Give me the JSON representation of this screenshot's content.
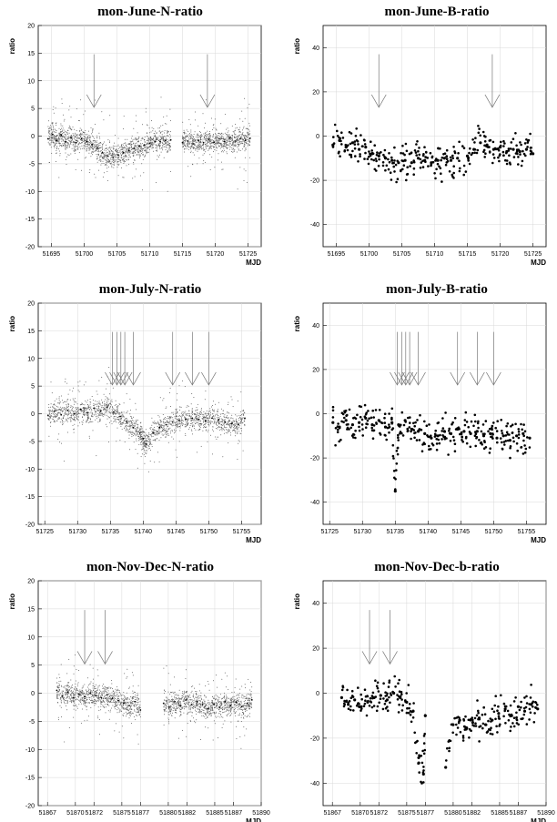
{
  "chart_data": [
    {
      "type": "scatter",
      "title": "mon-June-N-ratio",
      "xlabel": "MJD",
      "ylabel": "ratio",
      "xlim": [
        51693,
        51727
      ],
      "ylim": [
        -20,
        20
      ],
      "xticks": [
        51695,
        51700,
        51705,
        51710,
        51715,
        51720,
        51725
      ],
      "yticks": [
        -20,
        -15,
        -10,
        -5,
        0,
        5,
        10,
        15,
        20
      ],
      "grid": true,
      "marker": "small",
      "series": [
        {
          "x": [
            51694.5,
            51695.2,
            51695.8,
            51696.5,
            51697.2,
            51698.0,
            51698.8,
            51699.6,
            51700.4,
            51701.2,
            51702.0,
            51702.8,
            51703.6,
            51704.4,
            51705.2,
            51706.0,
            51706.8,
            51707.6,
            51708.4,
            51709.2,
            51710.0,
            51710.8,
            51711.6,
            51712.4,
            51713.2,
            51715.0,
            51715.8,
            51716.6,
            51717.4,
            51718.2,
            51719.0,
            51719.8,
            51720.6,
            51721.4,
            51722.2,
            51723.0,
            51723.8,
            51724.6,
            51725.3
          ],
          "y": [
            -0.5,
            0.3,
            -0.8,
            0.2,
            -1.0,
            -0.3,
            -1.2,
            -0.5,
            -1.0,
            -1.5,
            -2.2,
            -3.0,
            -3.6,
            -3.8,
            -3.4,
            -3.0,
            -2.6,
            -2.2,
            -1.8,
            -1.6,
            -1.3,
            -1.0,
            -1.0,
            -0.8,
            -0.7,
            -1.2,
            -0.9,
            -1.4,
            -0.8,
            -1.2,
            -0.6,
            -1.1,
            -0.5,
            -1.0,
            -0.4,
            -0.9,
            -0.5,
            -0.8,
            -0.4
          ]
        }
      ],
      "annotations": [
        {
          "type": "arrow",
          "x": 51701.5
        },
        {
          "type": "arrow",
          "x": 51718.8
        }
      ]
    },
    {
      "type": "scatter",
      "title": "mon-June-B-ratio",
      "xlabel": "MJD",
      "ylabel": "ratio",
      "xlim": [
        51693,
        51727
      ],
      "ylim": [
        -50,
        50
      ],
      "xticks": [
        51695,
        51700,
        51705,
        51710,
        51715,
        51720,
        51725
      ],
      "yticks": [
        -40,
        -20,
        0,
        20,
        40
      ],
      "grid": true,
      "marker": "dot",
      "series": [
        {
          "x": [
            51694.5,
            51695.5,
            51696.5,
            51697.5,
            51698.5,
            51699.5,
            51700.5,
            51701.5,
            51702.5,
            51703.5,
            51704.5,
            51705.5,
            51706.5,
            51707.5,
            51708.5,
            51709.5,
            51710.5,
            51711.5,
            51712.5,
            51713.5,
            51715.0,
            51716.0,
            51717.0,
            51718.0,
            51719.0,
            51720.0,
            51721.0,
            51722.0,
            51723.0,
            51724.0,
            51725.0
          ],
          "y": [
            -4,
            -2,
            -5,
            -3,
            -6,
            -5,
            -8,
            -9,
            -10,
            -11,
            -12,
            -11,
            -12,
            -10,
            -11,
            -12,
            -11,
            -10,
            -11,
            -10,
            -9,
            -6,
            -3,
            -4,
            -6,
            -5,
            -7,
            -6,
            -7,
            -6,
            -8
          ]
        }
      ],
      "annotations": [
        {
          "type": "arrow",
          "x": 51701.5
        },
        {
          "type": "arrow",
          "x": 51718.8
        }
      ]
    },
    {
      "type": "scatter",
      "title": "mon-July-N-ratio",
      "xlabel": "MJD",
      "ylabel": "ratio",
      "xlim": [
        51724,
        51758
      ],
      "ylim": [
        -20,
        20
      ],
      "xticks": [
        51725,
        51730,
        51735,
        51740,
        51745,
        51750,
        51755
      ],
      "yticks": [
        -20,
        -15,
        -10,
        -5,
        0,
        5,
        10,
        15,
        20
      ],
      "grid": true,
      "marker": "small",
      "series": [
        {
          "x": [
            51725.5,
            51726.5,
            51727.5,
            51728.5,
            51729.5,
            51730.5,
            51731.5,
            51732.5,
            51733.5,
            51734.5,
            51735.5,
            51736.5,
            51737.5,
            51738.5,
            51739.5,
            51740.0,
            51740.5,
            51741.5,
            51742.5,
            51743.5,
            51744.5,
            51745.5,
            51746.5,
            51747.5,
            51748.5,
            51749.5,
            51750.5,
            51751.5,
            51752.5,
            51753.5,
            51754.5,
            51755.5
          ],
          "y": [
            -0.3,
            0.5,
            -0.2,
            0.6,
            0.0,
            0.8,
            0.2,
            1.0,
            0.5,
            1.2,
            0.3,
            -0.5,
            -1.5,
            -2.5,
            -3.5,
            -4.5,
            -5.5,
            -3.5,
            -2.5,
            -2.0,
            -1.5,
            -1.2,
            -1.0,
            -0.8,
            -1.0,
            -1.3,
            -0.8,
            -1.1,
            -1.5,
            -1.8,
            -2.0,
            -0.8
          ]
        }
      ],
      "annotations": [
        {
          "type": "arrow",
          "x": 51735.3
        },
        {
          "type": "arrow",
          "x": 51736.0
        },
        {
          "type": "arrow",
          "x": 51736.6
        },
        {
          "type": "arrow",
          "x": 51737.2
        },
        {
          "type": "arrow",
          "x": 51738.5
        },
        {
          "type": "arrow",
          "x": 51744.5
        },
        {
          "type": "arrow",
          "x": 51747.5
        },
        {
          "type": "arrow",
          "x": 51750.0
        }
      ]
    },
    {
      "type": "scatter",
      "title": "mon-July-B-ratio",
      "xlabel": "MJD",
      "ylabel": "ratio",
      "xlim": [
        51724,
        51758
      ],
      "ylim": [
        -50,
        50
      ],
      "xticks": [
        51725,
        51730,
        51735,
        51740,
        51745,
        51750,
        51755
      ],
      "yticks": [
        -40,
        -20,
        0,
        20,
        40
      ],
      "grid": true,
      "marker": "dot",
      "series": [
        {
          "x": [
            51725.5,
            51726.5,
            51727.5,
            51728.5,
            51729.5,
            51730.5,
            51731.5,
            51732.5,
            51733.5,
            51734.5,
            51735.0,
            51735.5,
            51736.5,
            51737.5,
            51738.5,
            51739.5,
            51740.5,
            51741.5,
            51742.5,
            51743.5,
            51744.5,
            51745.5,
            51746.5,
            51747.5,
            51748.5,
            51749.5,
            51750.5,
            51751.5,
            51752.5,
            51753.5,
            51754.5,
            51755.5
          ],
          "y": [
            -4,
            -6,
            -3,
            -5,
            -4,
            -2,
            -5,
            -3,
            -6,
            -4,
            -35,
            -5,
            -3,
            -7,
            -8,
            -9,
            -11,
            -10,
            -8,
            -9,
            -7,
            -8,
            -9,
            -8,
            -10,
            -9,
            -11,
            -10,
            -12,
            -10,
            -9,
            -11
          ]
        }
      ],
      "annotations": [
        {
          "type": "arrow",
          "x": 51735.3
        },
        {
          "type": "arrow",
          "x": 51736.0
        },
        {
          "type": "arrow",
          "x": 51736.6
        },
        {
          "type": "arrow",
          "x": 51737.2
        },
        {
          "type": "arrow",
          "x": 51738.5
        },
        {
          "type": "arrow",
          "x": 51744.5
        },
        {
          "type": "arrow",
          "x": 51747.5
        },
        {
          "type": "arrow",
          "x": 51750.0
        }
      ]
    },
    {
      "type": "scatter",
      "title": "mon-Nov-Dec-N-ratio",
      "xlabel": "MJD",
      "ylabel": "ratio",
      "xlim": [
        51866,
        51890
      ],
      "ylim": [
        -20,
        20
      ],
      "xticks": [
        51867,
        51870,
        51872,
        51875,
        51877,
        51880,
        51882,
        51885,
        51887,
        51890
      ],
      "yticks": [
        -20,
        -15,
        -10,
        -5,
        0,
        5,
        10,
        15,
        20
      ],
      "grid": true,
      "marker": "small",
      "series": [
        {
          "x": [
            51868.0,
            51868.6,
            51869.2,
            51869.8,
            51870.4,
            51871.0,
            51871.6,
            51872.2,
            51872.8,
            51873.4,
            51874.0,
            51874.6,
            51875.2,
            51875.8,
            51876.4,
            51877.0,
            51879.5,
            51880.1,
            51880.7,
            51881.3,
            51881.9,
            51882.5,
            51883.1,
            51883.7,
            51884.3,
            51884.9,
            51885.5,
            51886.1,
            51886.7,
            51887.3,
            51887.9,
            51888.5,
            51889.0
          ],
          "y": [
            0.5,
            -0.5,
            0.2,
            -0.8,
            -0.2,
            -0.6,
            0.0,
            -0.4,
            -0.8,
            -0.3,
            -0.9,
            -1.3,
            -1.8,
            -2.2,
            -1.5,
            -3.0,
            -1.8,
            -2.5,
            -1.5,
            -2.2,
            -1.2,
            -2.0,
            -1.5,
            -2.0,
            -2.8,
            -2.0,
            -2.5,
            -1.5,
            -2.2,
            -1.6,
            -2.4,
            -1.8,
            -1.2
          ]
        }
      ],
      "annotations": [
        {
          "type": "arrow",
          "x": 51871.0
        },
        {
          "type": "arrow",
          "x": 51873.2
        }
      ]
    },
    {
      "type": "scatter",
      "title": "mon-Nov-Dec-b-ratio",
      "xlabel": "MJD",
      "ylabel": "ratio",
      "xlim": [
        51866,
        51890
      ],
      "ylim": [
        -50,
        50
      ],
      "xticks": [
        51867,
        51870,
        51872,
        51875,
        51877,
        51880,
        51882,
        51885,
        51887,
        51890
      ],
      "yticks": [
        -40,
        -20,
        0,
        20,
        40
      ],
      "grid": true,
      "marker": "dot",
      "series": [
        {
          "x": [
            51868.0,
            51868.7,
            51869.4,
            51870.1,
            51870.8,
            51871.5,
            51872.2,
            51872.9,
            51873.6,
            51874.3,
            51875.0,
            51875.7,
            51876.3,
            51876.8,
            51877.0,
            51879.2,
            51880.0,
            51880.7,
            51881.4,
            51882.1,
            51882.8,
            51883.5,
            51884.2,
            51884.9,
            51885.6,
            51886.3,
            51887.0,
            51887.7,
            51888.4,
            51889.1
          ],
          "y": [
            -2,
            -5,
            -3,
            -6,
            -4,
            -2,
            -1,
            -3,
            0,
            -2,
            -4,
            -8,
            -31,
            -36,
            -10,
            -33,
            -14,
            -12,
            -16,
            -13,
            -11,
            -14,
            -12,
            -9,
            -7,
            -10,
            -6,
            -8,
            -5,
            -7
          ]
        }
      ],
      "annotations": [
        {
          "type": "arrow",
          "x": 51871.0
        },
        {
          "type": "arrow",
          "x": 51873.2
        }
      ]
    }
  ]
}
